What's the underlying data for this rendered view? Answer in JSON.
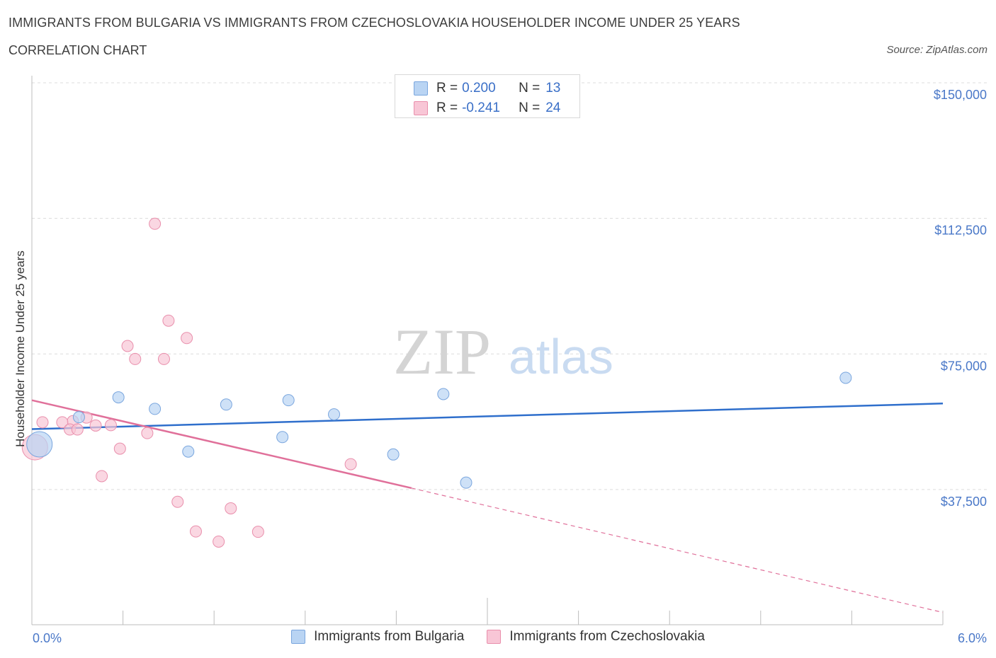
{
  "header": {
    "title": "IMMIGRANTS FROM BULGARIA VS IMMIGRANTS FROM CZECHOSLOVAKIA HOUSEHOLDER INCOME UNDER 25 YEARS",
    "subtitle": "CORRELATION CHART",
    "source": "Source: ZipAtlas.com"
  },
  "legend": {
    "r_label": "R =",
    "n_label": "N =",
    "series1": {
      "r": "0.200",
      "n": "13"
    },
    "series2": {
      "r": "-0.241",
      "n": "24"
    }
  },
  "watermark": {
    "zip": "ZIP",
    "atlas": "atlas"
  },
  "colors": {
    "bulgaria_fill": "#b9d4f3",
    "bulgaria_stroke": "#7aa6de",
    "bulgaria_line": "#2f6fcc",
    "czech_fill": "#f8c6d6",
    "czech_stroke": "#e98fac",
    "czech_line": "#e0709a",
    "axis_text": "#4a78c8"
  },
  "chart_data": {
    "type": "scatter",
    "ylabel": "Householder Income Under 25 years",
    "xlim": [
      0,
      6
    ],
    "ylim": [
      0,
      150000
    ],
    "x_tick_labels": [
      "0.0%",
      "6.0%"
    ],
    "y_ticks": [
      37500,
      75000,
      112500,
      150000
    ],
    "y_tick_labels": [
      "$37,500",
      "$75,000",
      "$112,500",
      "$150,000"
    ],
    "grid": true,
    "series": [
      {
        "name": "Immigrants from Bulgaria",
        "points": [
          {
            "x": 0.05,
            "y": 50000,
            "big": true
          },
          {
            "x": 0.31,
            "y": 57500
          },
          {
            "x": 0.57,
            "y": 63000
          },
          {
            "x": 0.81,
            "y": 59800
          },
          {
            "x": 1.03,
            "y": 48000
          },
          {
            "x": 1.28,
            "y": 61000
          },
          {
            "x": 1.65,
            "y": 52000
          },
          {
            "x": 1.69,
            "y": 62200
          },
          {
            "x": 1.99,
            "y": 58300
          },
          {
            "x": 2.38,
            "y": 47200
          },
          {
            "x": 2.71,
            "y": 63900
          },
          {
            "x": 2.86,
            "y": 39400
          },
          {
            "x": 5.36,
            "y": 68400
          }
        ],
        "trend": {
          "x0": 0,
          "y0": 54200,
          "x1": 6,
          "y1": 61300
        }
      },
      {
        "name": "Immigrants from Czechoslovakia",
        "points": [
          {
            "x": 0.02,
            "y": 49200,
            "big": true
          },
          {
            "x": 0.07,
            "y": 56100
          },
          {
            "x": 0.27,
            "y": 56400
          },
          {
            "x": 0.2,
            "y": 56100
          },
          {
            "x": 0.25,
            "y": 54100
          },
          {
            "x": 0.3,
            "y": 54100
          },
          {
            "x": 0.36,
            "y": 57400
          },
          {
            "x": 0.42,
            "y": 55200
          },
          {
            "x": 0.52,
            "y": 55300
          },
          {
            "x": 0.46,
            "y": 41200
          },
          {
            "x": 0.58,
            "y": 48800
          },
          {
            "x": 0.63,
            "y": 77200
          },
          {
            "x": 0.68,
            "y": 73600
          },
          {
            "x": 0.76,
            "y": 53100
          },
          {
            "x": 0.81,
            "y": 111000
          },
          {
            "x": 0.87,
            "y": 73600
          },
          {
            "x": 0.9,
            "y": 84200
          },
          {
            "x": 0.96,
            "y": 34100
          },
          {
            "x": 1.02,
            "y": 79400
          },
          {
            "x": 1.08,
            "y": 25900
          },
          {
            "x": 1.23,
            "y": 23100
          },
          {
            "x": 1.31,
            "y": 32300
          },
          {
            "x": 1.49,
            "y": 25800
          },
          {
            "x": 2.1,
            "y": 44500
          }
        ],
        "trend": {
          "x0": 0,
          "y0": 62200,
          "x1": 2.5,
          "y1": 37900,
          "dash_x1": 6,
          "dash_y1": 3500
        }
      }
    ]
  }
}
